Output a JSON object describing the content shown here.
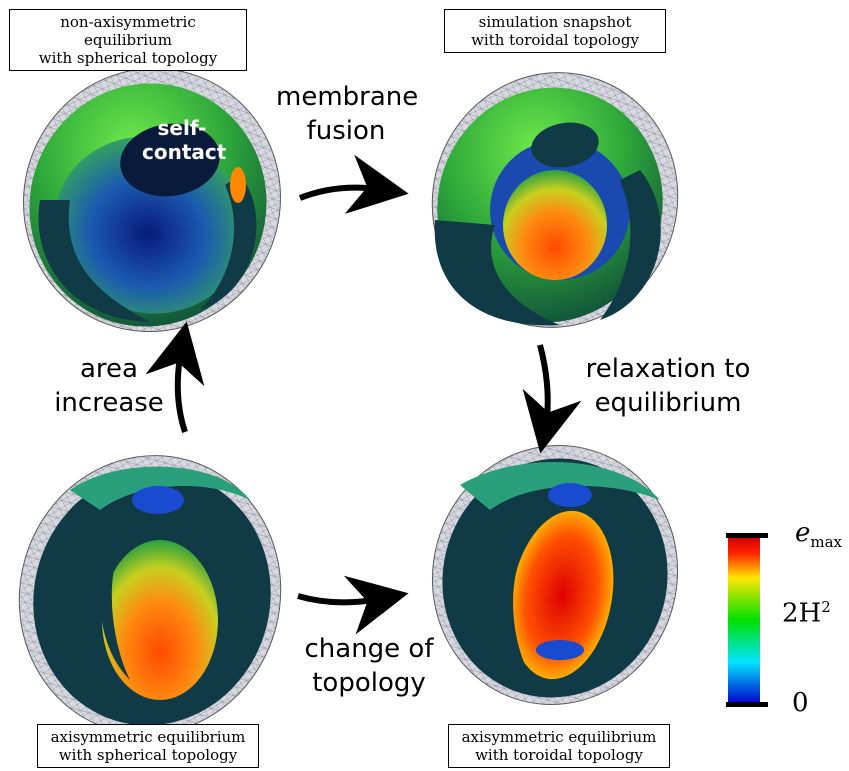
{
  "captions": {
    "top_left": [
      "non-axisymmetric equilibrium",
      "with spherical topology"
    ],
    "top_right": [
      "simulation snapshot",
      "with toroidal topology"
    ],
    "bottom_left": [
      "axisymmetric equilibrium",
      "with spherical topology"
    ],
    "bottom_right": [
      "axisymmetric equilibrium",
      "with toroidal topology"
    ]
  },
  "transitions": {
    "top": [
      "membrane",
      "fusion"
    ],
    "right": [
      "relaxation to",
      "equilibrium"
    ],
    "bottom": [
      "change of",
      "topology"
    ],
    "left": [
      "area",
      "increase"
    ]
  },
  "annotation": {
    "self_contact": [
      "self-",
      "contact"
    ]
  },
  "colorbar": {
    "labels": {
      "max_base": "e",
      "max_sub": "max",
      "mid_base": "2H",
      "mid_sup": "2",
      "min": "0"
    },
    "colors": [
      "#0000cc",
      "#00e5ff",
      "#00e000",
      "#ffe600",
      "#ff2000",
      "#cc0000"
    ]
  },
  "colors": {
    "shell_dark": "#0f3a46",
    "mesh": "#9a9aa8",
    "arrow": "#000000"
  },
  "arrow_icons": [
    "curved-arrow-right-icon",
    "curved-arrow-down-icon",
    "curved-arrow-up-icon"
  ]
}
